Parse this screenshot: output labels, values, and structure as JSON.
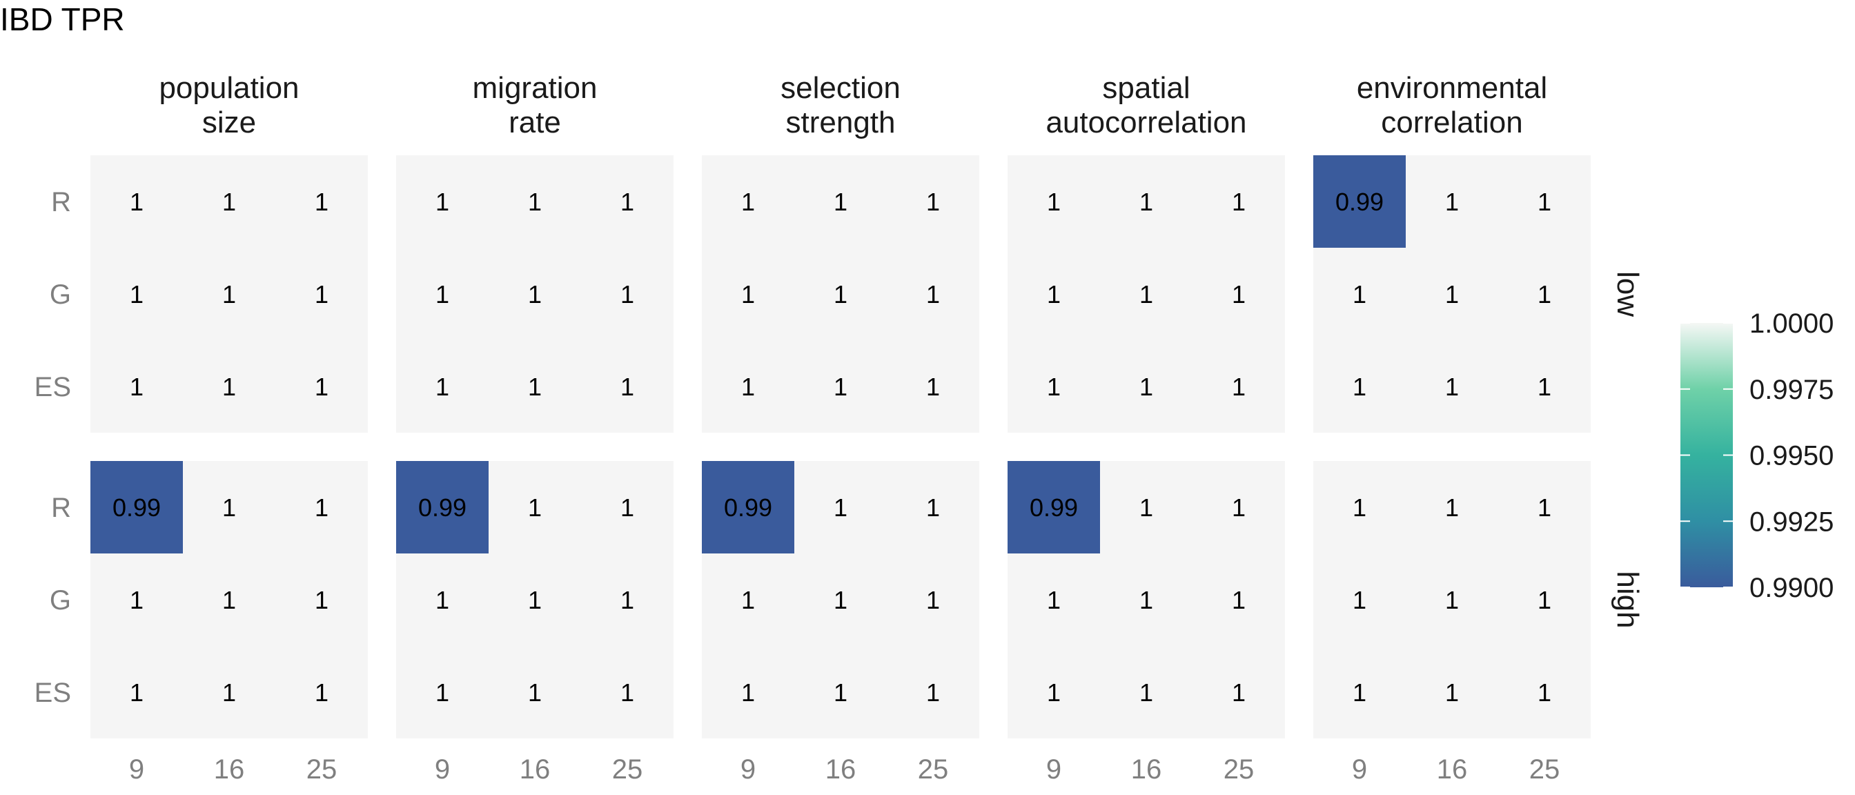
{
  "chart_data": {
    "type": "heatmap",
    "title": "IBD TPR",
    "facet_columns": [
      {
        "id": "population_size",
        "label_lines": [
          "population",
          "size"
        ]
      },
      {
        "id": "migration_rate",
        "label_lines": [
          "migration",
          "rate"
        ]
      },
      {
        "id": "selection_strength",
        "label_lines": [
          "selection",
          "strength"
        ]
      },
      {
        "id": "spatial_autocorrelation",
        "label_lines": [
          "spatial",
          "autocorrelation"
        ]
      },
      {
        "id": "environmental_correlation",
        "label_lines": [
          "environmental",
          "correlation"
        ]
      }
    ],
    "facet_rows": [
      "low",
      "high"
    ],
    "x_categories": [
      "9",
      "16",
      "25"
    ],
    "y_categories": [
      "R",
      "G",
      "ES"
    ],
    "panels": [
      {
        "row": "low",
        "column": "population_size",
        "values": [
          [
            1,
            1,
            1
          ],
          [
            1,
            1,
            1
          ],
          [
            1,
            1,
            1
          ]
        ]
      },
      {
        "row": "low",
        "column": "migration_rate",
        "values": [
          [
            1,
            1,
            1
          ],
          [
            1,
            1,
            1
          ],
          [
            1,
            1,
            1
          ]
        ]
      },
      {
        "row": "low",
        "column": "selection_strength",
        "values": [
          [
            1,
            1,
            1
          ],
          [
            1,
            1,
            1
          ],
          [
            1,
            1,
            1
          ]
        ]
      },
      {
        "row": "low",
        "column": "spatial_autocorrelation",
        "values": [
          [
            1,
            1,
            1
          ],
          [
            1,
            1,
            1
          ],
          [
            1,
            1,
            1
          ]
        ]
      },
      {
        "row": "low",
        "column": "environmental_correlation",
        "values": [
          [
            0.99,
            1,
            1
          ],
          [
            1,
            1,
            1
          ],
          [
            1,
            1,
            1
          ]
        ]
      },
      {
        "row": "high",
        "column": "population_size",
        "values": [
          [
            0.99,
            1,
            1
          ],
          [
            1,
            1,
            1
          ],
          [
            1,
            1,
            1
          ]
        ]
      },
      {
        "row": "high",
        "column": "migration_rate",
        "values": [
          [
            0.99,
            1,
            1
          ],
          [
            1,
            1,
            1
          ],
          [
            1,
            1,
            1
          ]
        ]
      },
      {
        "row": "high",
        "column": "selection_strength",
        "values": [
          [
            0.99,
            1,
            1
          ],
          [
            1,
            1,
            1
          ],
          [
            1,
            1,
            1
          ]
        ]
      },
      {
        "row": "high",
        "column": "spatial_autocorrelation",
        "values": [
          [
            0.99,
            1,
            1
          ],
          [
            1,
            1,
            1
          ],
          [
            1,
            1,
            1
          ]
        ]
      },
      {
        "row": "high",
        "column": "environmental_correlation",
        "values": [
          [
            1,
            1,
            1
          ],
          [
            1,
            1,
            1
          ],
          [
            1,
            1,
            1
          ]
        ]
      }
    ],
    "colorbar": {
      "range": [
        0.99,
        1.0
      ],
      "ticks": [
        "1.0000",
        "0.9975",
        "0.9950",
        "0.9925",
        "0.9900"
      ],
      "colors": [
        "#3a5b9c",
        "#2f8fa4",
        "#35b29f",
        "#6fd1a8",
        "#f5f7f5"
      ]
    },
    "legend_position": "right",
    "panel_background": "#f5f5f5",
    "low_value_color": "#3a5b9c"
  }
}
